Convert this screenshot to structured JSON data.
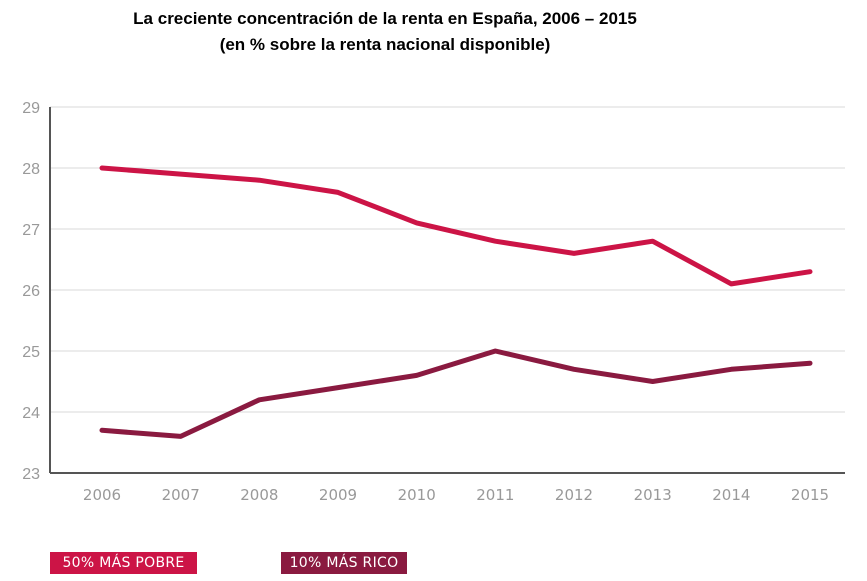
{
  "chart_data": {
    "type": "line",
    "title": "La creciente concentración de la renta en España, 2006 – 2015",
    "subtitle": "(en % sobre la renta nacional disponible)",
    "xlabel": "",
    "ylabel": "",
    "x": [
      "2006",
      "2007",
      "2008",
      "2009",
      "2010",
      "2011",
      "2012",
      "2013",
      "2014",
      "2015"
    ],
    "yticks": [
      "23",
      "24",
      "25",
      "26",
      "27",
      "28",
      "29"
    ],
    "ylim": [
      23,
      29
    ],
    "grid": true,
    "legend_placement": "bottom-left",
    "series": [
      {
        "name": "50% MÁS POBRE",
        "color": "#cc1446",
        "values": [
          28.0,
          27.9,
          27.8,
          27.6,
          27.1,
          26.8,
          26.6,
          26.8,
          26.1,
          26.3
        ]
      },
      {
        "name": "10% MÁS RICO",
        "color": "#8a1a40",
        "values": [
          23.7,
          23.6,
          24.2,
          24.4,
          24.6,
          25.0,
          24.7,
          24.5,
          24.7,
          24.8
        ]
      }
    ]
  }
}
